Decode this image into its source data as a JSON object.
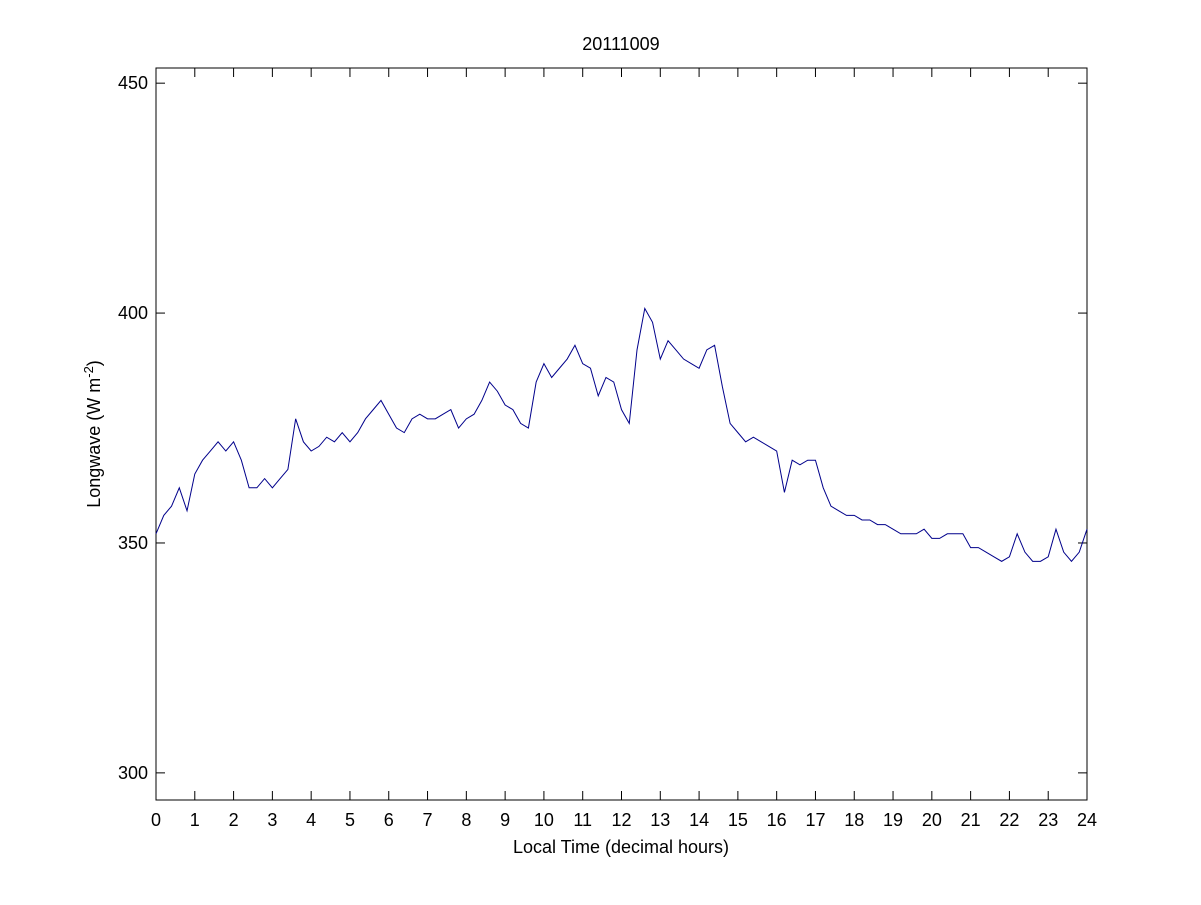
{
  "chart_data": {
    "type": "line",
    "title": "20111009",
    "x_label": "Local Time (decimal hours)",
    "y_label": [
      "Longwave (W m",
      "-2",
      ")"
    ],
    "x": [
      0,
      0.2,
      0.4,
      0.6,
      0.8,
      1,
      1.2,
      1.4,
      1.6,
      1.8,
      2,
      2.2,
      2.4,
      2.6,
      2.8,
      3,
      3.2,
      3.4,
      3.6,
      3.8,
      4,
      4.2,
      4.4,
      4.6,
      4.8,
      5,
      5.2,
      5.4,
      5.6,
      5.8,
      6,
      6.2,
      6.4,
      6.6,
      6.8,
      7,
      7.2,
      7.4,
      7.6,
      7.8,
      8,
      8.2,
      8.4,
      8.6,
      8.8,
      9,
      9.2,
      9.4,
      9.6,
      9.8,
      10,
      10.2,
      10.4,
      10.6,
      10.8,
      11,
      11.2,
      11.4,
      11.6,
      11.8,
      12,
      12.2,
      12.4,
      12.6,
      12.8,
      13,
      13.2,
      13.4,
      13.6,
      13.8,
      14,
      14.2,
      14.4,
      14.6,
      14.8,
      15,
      15.2,
      15.4,
      15.6,
      15.8,
      16,
      16.2,
      16.4,
      16.6,
      16.8,
      17,
      17.2,
      17.4,
      17.6,
      17.8,
      18,
      18.2,
      18.4,
      18.6,
      18.8,
      19,
      19.2,
      19.4,
      19.6,
      19.8,
      20,
      20.2,
      20.4,
      20.6,
      20.8,
      21,
      21.2,
      21.4,
      21.6,
      21.8,
      22,
      22.2,
      22.4,
      22.6,
      22.8,
      23,
      23.2,
      23.4,
      23.6,
      23.8,
      24
    ],
    "values": [
      352,
      356,
      358,
      362,
      357,
      365,
      368,
      370,
      372,
      370,
      372,
      368,
      362,
      362,
      364,
      362,
      364,
      366,
      377,
      372,
      370,
      371,
      373,
      372,
      374,
      372,
      374,
      377,
      379,
      381,
      378,
      375,
      374,
      377,
      378,
      377,
      377,
      378,
      379,
      375,
      377,
      378,
      381,
      385,
      383,
      380,
      379,
      376,
      375,
      385,
      389,
      386,
      388,
      390,
      393,
      389,
      388,
      382,
      386,
      385,
      379,
      376,
      392,
      401,
      398,
      390,
      394,
      392,
      390,
      389,
      388,
      392,
      393,
      384,
      376,
      374,
      372,
      373,
      372,
      371,
      370,
      361,
      368,
      367,
      368,
      368,
      362,
      358,
      357,
      356,
      356,
      355,
      355,
      354,
      354,
      353,
      352,
      352,
      352,
      353,
      351,
      351,
      352,
      352,
      352,
      349,
      349,
      348,
      347,
      346,
      347,
      352,
      348,
      346,
      346,
      347,
      353,
      348,
      346,
      348,
      353
    ],
    "color": "#00008b",
    "xlim": [
      0,
      24
    ],
    "ylim": [
      294.1,
      453.3
    ],
    "xticks": [
      0,
      1,
      2,
      3,
      4,
      5,
      6,
      7,
      8,
      9,
      10,
      11,
      12,
      13,
      14,
      15,
      16,
      17,
      18,
      19,
      20,
      21,
      22,
      23,
      24
    ],
    "yticks": [
      300,
      350,
      400,
      450
    ]
  }
}
